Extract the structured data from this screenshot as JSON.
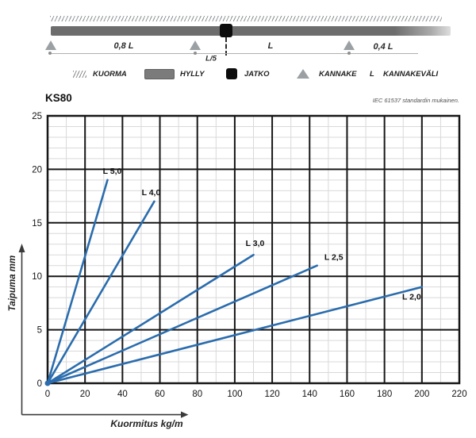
{
  "schematic": {
    "labels": {
      "span_left": "0,8 L",
      "joint_offset": "L/5",
      "span_mid": "L",
      "span_right": "0,4 L"
    }
  },
  "legend": {
    "items": [
      {
        "icon": "hatch-icon",
        "label": "KUORMA"
      },
      {
        "icon": "shelf-bar-icon",
        "label": "HYLLY"
      },
      {
        "icon": "joint-square-icon",
        "label": "JATKO"
      },
      {
        "icon": "support-triangle-icon",
        "label": "KANNAKE"
      },
      {
        "icon": "letter-l-symbol",
        "label": "KANNAKEVÄLI"
      }
    ],
    "l_symbol": "L"
  },
  "chart": {
    "title": "KS80",
    "note": "IEC 61537 standardin mukainen."
  },
  "chart_data": {
    "type": "line",
    "title": "KS80",
    "note": "IEC 61537 standardin mukainen.",
    "xlabel": "Kuormitus kg/m",
    "ylabel": "Taipuma mm",
    "xlim": [
      0,
      220
    ],
    "ylim": [
      0,
      25
    ],
    "x_ticks": [
      0,
      20,
      40,
      60,
      80,
      100,
      120,
      140,
      160,
      180,
      200,
      220
    ],
    "y_ticks": [
      0,
      5,
      10,
      15,
      20,
      25
    ],
    "x_major_step": 20,
    "x_minor_step": 10,
    "y_major_step": 5,
    "y_minor_step": 1,
    "grid": true,
    "legend_position": "inline-labels",
    "line_color": "#2a6cad",
    "grid_major_color": "#161616",
    "grid_minor_color": "#d9d9d9",
    "series": [
      {
        "name": "L 5,0",
        "points": [
          [
            0,
            0
          ],
          [
            32,
            19
          ]
        ],
        "label_dx": 6,
        "label_dy": -8
      },
      {
        "name": "L 4,0",
        "points": [
          [
            0,
            0
          ],
          [
            57,
            17
          ]
        ],
        "label_dx": -4,
        "label_dy": -8
      },
      {
        "name": "L 3,0",
        "points": [
          [
            0,
            0
          ],
          [
            110,
            12
          ]
        ],
        "label_dx": 2,
        "label_dy": -11
      },
      {
        "name": "L 2,5",
        "points": [
          [
            0,
            0
          ],
          [
            144,
            11
          ]
        ],
        "label_dx": 21,
        "label_dy": -7
      },
      {
        "name": "L 2,0",
        "points": [
          [
            0,
            0
          ],
          [
            200,
            9
          ]
        ],
        "label_dx": -13,
        "label_dy": 16
      }
    ]
  }
}
